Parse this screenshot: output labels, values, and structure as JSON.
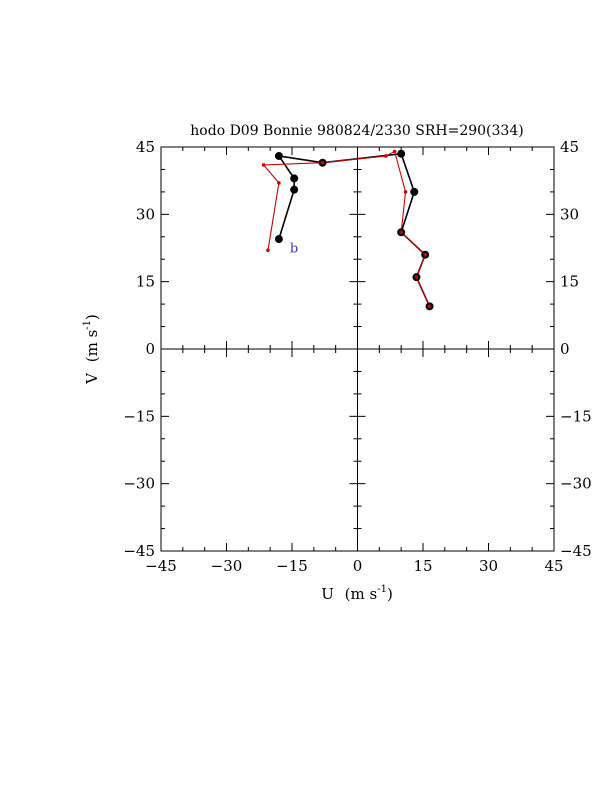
{
  "chart_data": {
    "type": "line",
    "title": "hodo D09 Bonnie 980824/2330 SRH=290(334)",
    "xlabel": "U",
    "xlabel_unit": "(m s",
    "xlabel_sup": "-1",
    "xlabel_close": ")",
    "ylabel": "V",
    "ylabel_unit": "(m s",
    "ylabel_sup": "-1",
    "ylabel_close": ")",
    "xlim": [
      -45,
      45
    ],
    "ylim": [
      -45,
      45
    ],
    "x_ticks": [
      -45,
      -30,
      -15,
      0,
      15,
      30,
      45
    ],
    "x_tick_labels": [
      "−45",
      "−30",
      "−15",
      "0",
      "15",
      "30",
      "45"
    ],
    "y_ticks": [
      -45,
      -30,
      -15,
      0,
      15,
      30,
      45
    ],
    "y_tick_labels": [
      "−45",
      "−30",
      "−15",
      "0",
      "15",
      "30",
      "45"
    ],
    "grid": false,
    "annotation": {
      "text": "b",
      "x": -15.5,
      "y": 21.5,
      "color": "#3333cc"
    },
    "series": [
      {
        "color": "#000000",
        "marker": "circle",
        "x": [
          16.5,
          13.5,
          15.5,
          10.0,
          13.0,
          10.0,
          -8.0,
          -18.0,
          -14.5,
          -14.5,
          -18.0
        ],
        "y": [
          9.5,
          16.0,
          21.0,
          26.0,
          35.0,
          43.5,
          41.5,
          43.0,
          38.0,
          35.5,
          24.5
        ]
      },
      {
        "color": "#cc0000",
        "marker": "dot",
        "x": [
          16.5,
          13.5,
          15.5,
          10.0,
          11.0,
          8.5,
          6.5,
          -8.0,
          -21.5,
          -18.0,
          -20.5
        ],
        "y": [
          9.5,
          16.0,
          21.0,
          26.0,
          35.0,
          44.0,
          43.0,
          41.5,
          41.0,
          37.0,
          22.0
        ]
      }
    ]
  }
}
